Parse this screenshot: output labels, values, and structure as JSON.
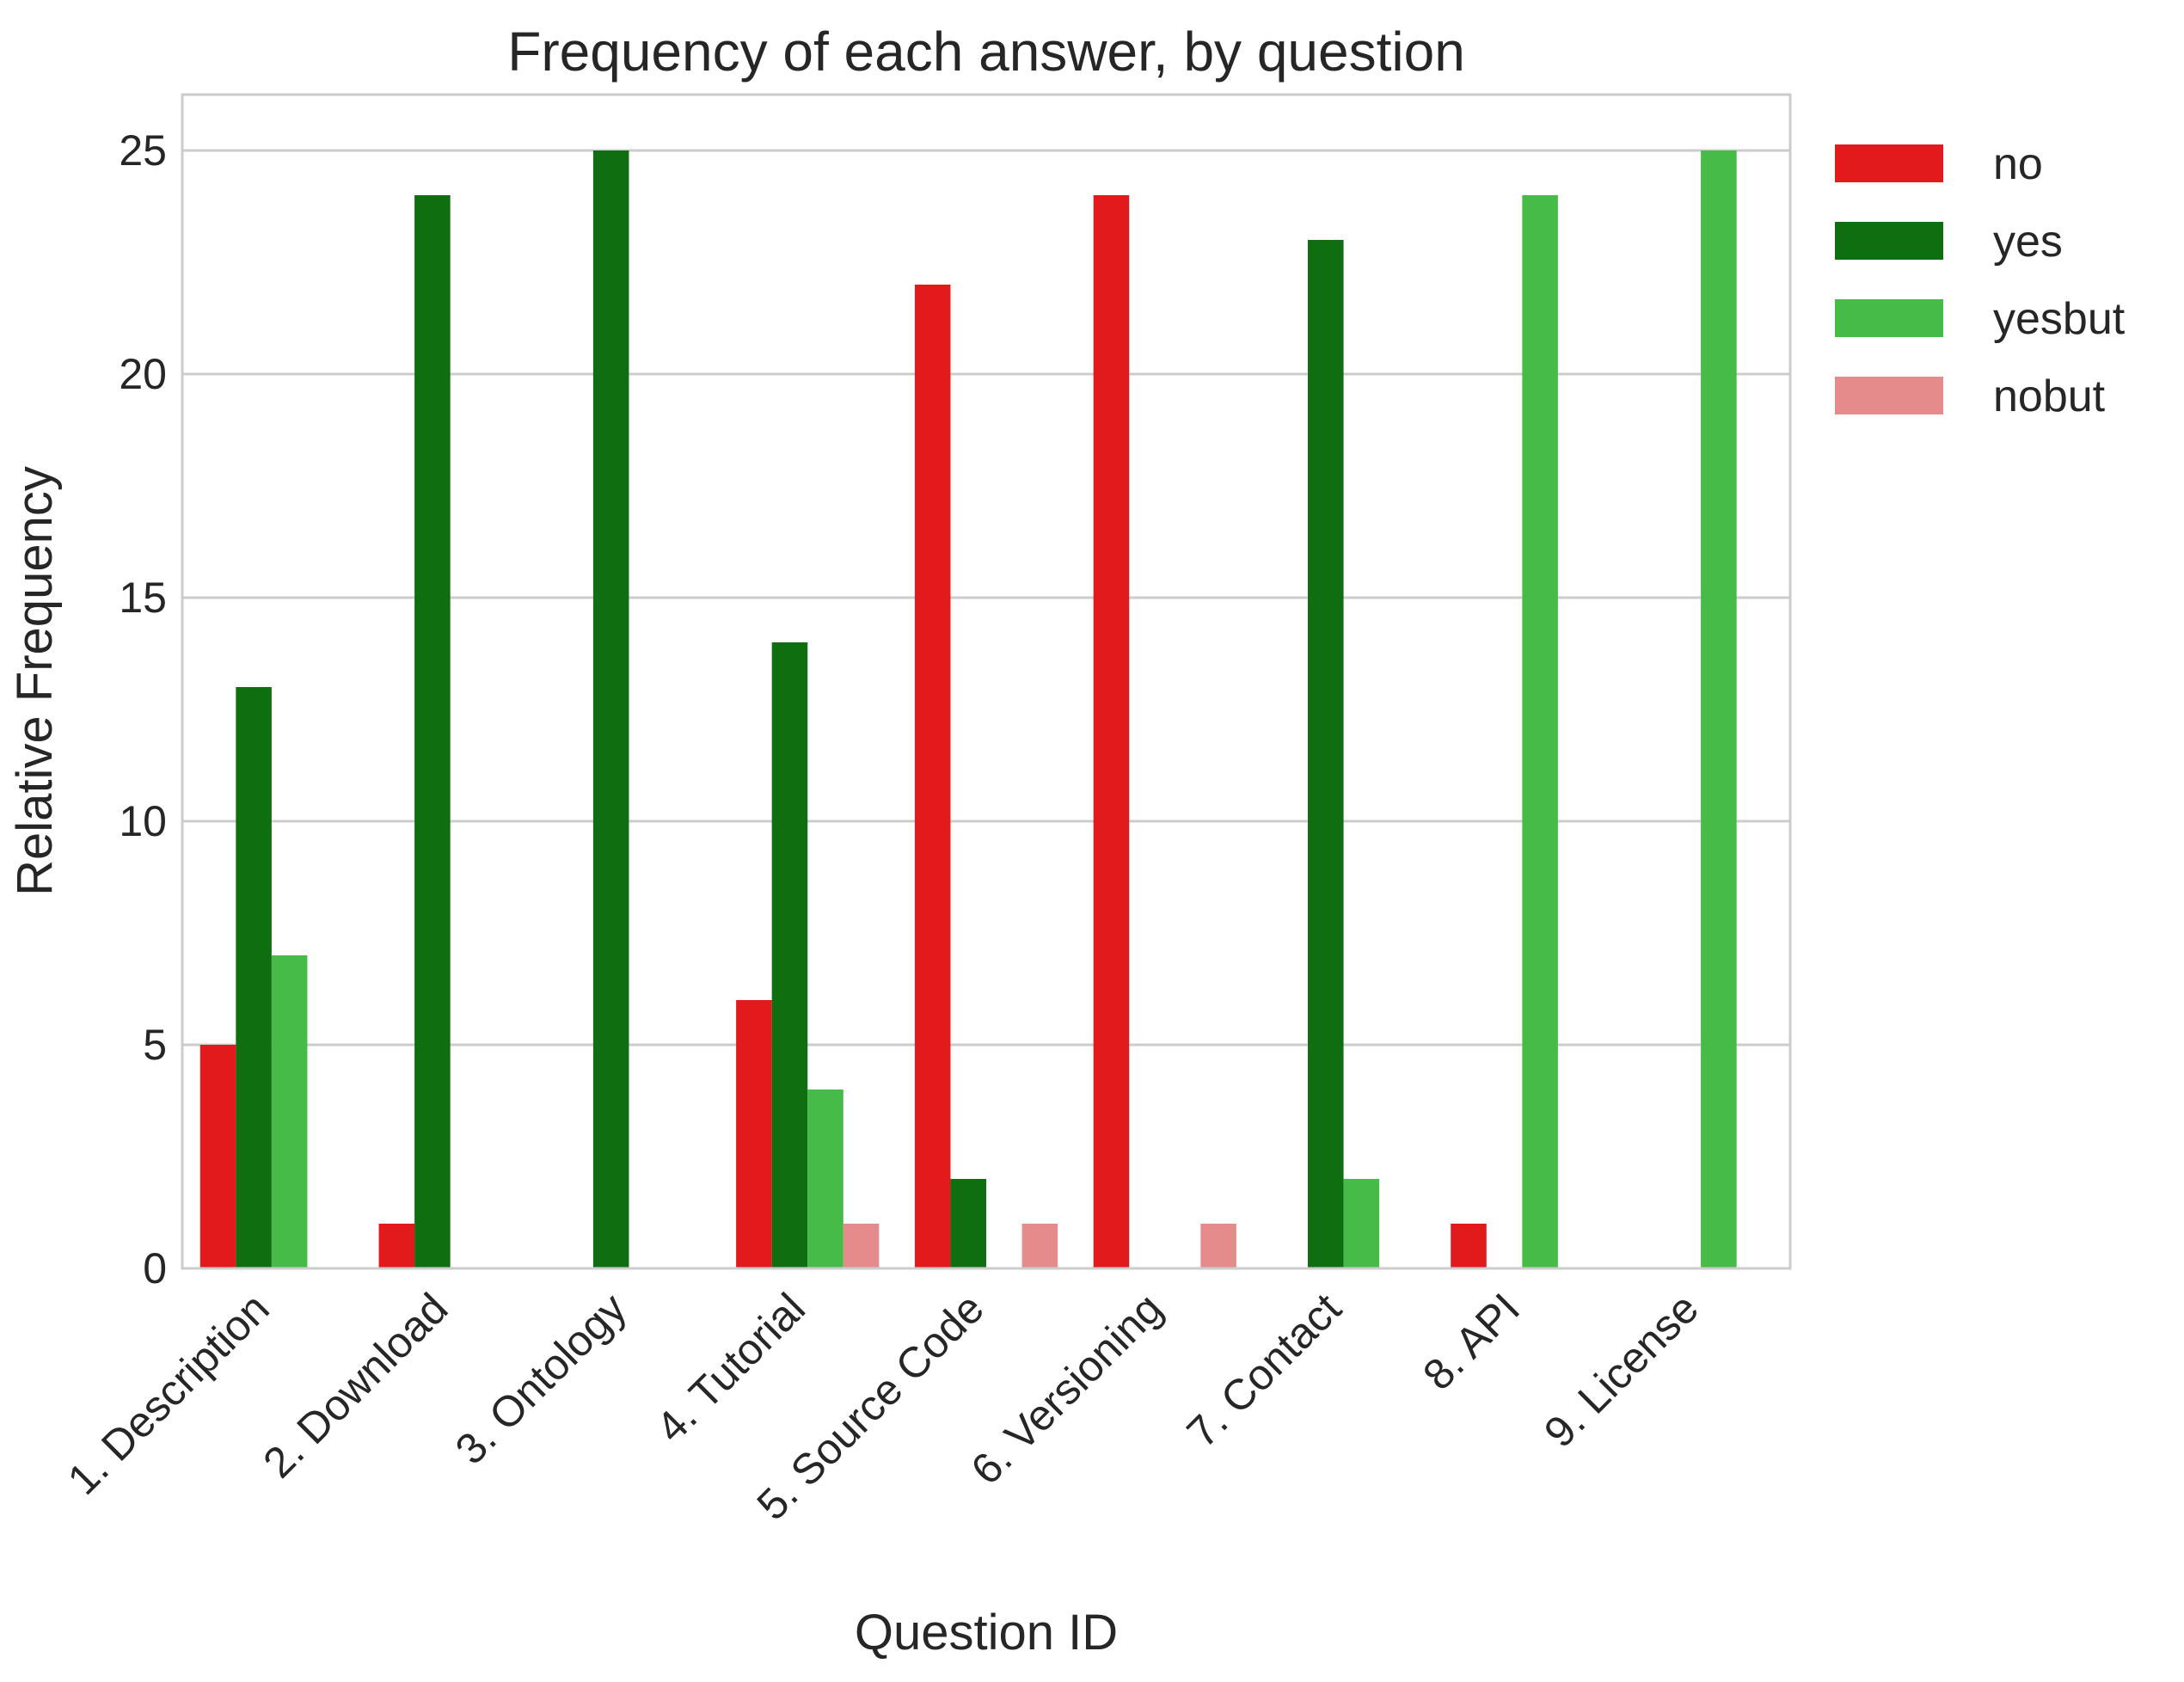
{
  "chart_data": {
    "type": "bar",
    "title": "Frequency of each answer, by question",
    "xlabel": "Question ID",
    "ylabel": "Relative Frequency",
    "categories": [
      "1. Description",
      "2. Download",
      "3. Ontology",
      "4. Tutorial",
      "5. Source Code",
      "6. Versioning",
      "7. Contact",
      "8. API",
      "9. License"
    ],
    "series": [
      {
        "name": "no",
        "color": "#e31a1c",
        "values": [
          5,
          1,
          0,
          6,
          22,
          24,
          0,
          1,
          0
        ]
      },
      {
        "name": "yes",
        "color": "#0f6e0f",
        "values": [
          13,
          24,
          25,
          14,
          2,
          0,
          23,
          0,
          0
        ]
      },
      {
        "name": "yesbut",
        "color": "#47bb47",
        "values": [
          7,
          0,
          0,
          4,
          0,
          0,
          2,
          24,
          25
        ]
      },
      {
        "name": "nobut",
        "color": "#e58b8b",
        "values": [
          0,
          0,
          0,
          1,
          1,
          1,
          0,
          0,
          0
        ]
      }
    ],
    "yticks": [
      0,
      5,
      10,
      15,
      20,
      25
    ],
    "ylim": [
      0,
      26.25
    ],
    "grid": true,
    "legend": "outside-top-right"
  }
}
